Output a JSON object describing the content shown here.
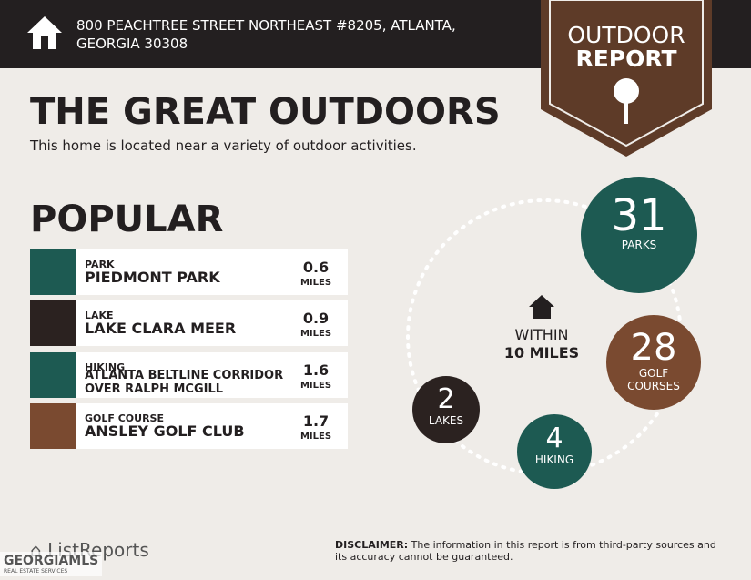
{
  "header": {
    "address": [
      "800 PEACHTREE STREET NORTHEAST #8205, ATLANTA,",
      "GEORGIA 30308"
    ]
  },
  "badge": {
    "lines": [
      "OUTDOOR",
      "REPORT"
    ]
  },
  "title": "THE GREAT OUTDOORS",
  "subtitle": "This home is located near a variety of outdoor activities.",
  "popular": {
    "heading": "POPULAR",
    "rows": [
      {
        "category": "PARK",
        "name": [
          "PIEDMONT PARK"
        ],
        "distance": 0.6,
        "unit": "MILES",
        "color": "#1d5a52"
      },
      {
        "category": "LAKE",
        "name": [
          "LAKE CLARA MEER"
        ],
        "distance": 0.9,
        "unit": "MILES",
        "color": "#2b2220"
      },
      {
        "category": "HIKING",
        "name": [
          "ATLANTA BELTLINE CORRIDOR",
          "OVER RALPH MCGILL"
        ],
        "distance": 1.6,
        "unit": "MILES",
        "color": "#1d5a52"
      },
      {
        "category": "GOLF COURSE",
        "name": [
          "ANSLEY GOLF CLUB"
        ],
        "distance": 1.7,
        "unit": "MILES",
        "color": "#7a4a30"
      }
    ]
  },
  "summary": {
    "within": [
      "WITHIN",
      "10 MILES"
    ],
    "counts": [
      {
        "count": 31,
        "label": [
          "PARKS"
        ],
        "color": "#1d5a52"
      },
      {
        "count": 28,
        "label": [
          "GOLF",
          "COURSES"
        ],
        "color": "#7a4a30"
      },
      {
        "count": 4,
        "label": [
          "HIKING"
        ],
        "color": "#1d5a52"
      },
      {
        "count": 2,
        "label": [
          "LAKES"
        ],
        "color": "#2b2220"
      }
    ]
  },
  "disclaimer": {
    "label": "DISCLAIMER:",
    "text": "The information in this report is from third-party sources and its accuracy cannot be guaranteed."
  },
  "footer": {
    "logo": "ListReports",
    "watermark": "GEORGIAMLS",
    "watermark_sub": "REAL ESTATE SERVICES"
  }
}
